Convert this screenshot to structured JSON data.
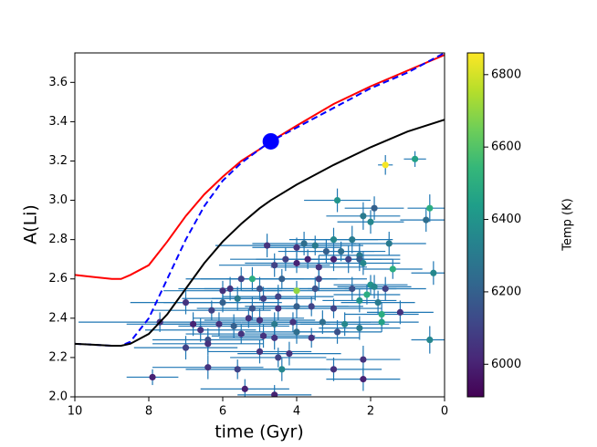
{
  "chart_data": {
    "type": "scatter",
    "xlabel": "time (Gyr)",
    "ylabel": "A(Li)",
    "xlim": [
      10,
      0
    ],
    "ylim": [
      2.0,
      3.75
    ],
    "xticks": [
      10,
      8,
      6,
      4,
      2,
      0
    ],
    "yticks": [
      {
        "value": 2.0,
        "label": "2.0"
      },
      2.2,
      2.4,
      2.6,
      2.8,
      {
        "value": 3.0,
        "label": "3.0"
      },
      3.2,
      3.4,
      3.6
    ],
    "points": {
      "x": [
        1.6,
        0.8,
        2.9,
        2.2,
        1.9,
        0.4,
        0.5,
        2.0,
        4.8,
        4.0,
        3.0,
        2.5,
        3.8,
        3.5,
        1.5,
        3.2,
        2.8,
        2.3,
        4.3,
        3.7,
        3.0,
        2.6,
        2.3,
        4.6,
        4.0,
        3.4,
        2.2,
        1.4,
        0.3,
        5.5,
        5.2,
        4.4,
        3.4,
        4.0,
        5.0,
        5.8,
        6.0,
        3.5,
        2.5,
        2.0,
        1.9,
        1.6,
        2.1,
        2.3,
        5.6,
        6.0,
        4.9,
        4.5,
        3.6,
        1.8,
        7.0,
        6.3,
        5.2,
        4.5,
        4.0,
        3.0,
        1.7,
        1.2,
        7.7,
        6.8,
        6.1,
        5.7,
        5.3,
        5.0,
        4.6,
        4.1,
        3.3,
        2.7,
        2.3,
        1.7,
        6.6,
        6.4,
        5.5,
        4.9,
        4.6,
        4.0,
        3.6,
        2.9,
        0.4,
        7.0,
        6.4,
        5.0,
        4.5,
        4.2,
        4.4,
        6.4,
        5.6,
        3.0,
        2.2,
        2.2,
        7.9,
        5.4,
        4.6
      ],
      "y": [
        3.18,
        3.21,
        3.0,
        2.92,
        2.96,
        2.96,
        2.9,
        2.89,
        2.77,
        2.76,
        2.8,
        2.8,
        2.78,
        2.77,
        2.78,
        2.74,
        2.74,
        2.72,
        2.7,
        2.7,
        2.7,
        2.7,
        2.7,
        2.67,
        2.68,
        2.66,
        2.68,
        2.65,
        2.63,
        2.6,
        2.6,
        2.6,
        2.6,
        2.54,
        2.55,
        2.55,
        2.54,
        2.55,
        2.55,
        2.57,
        2.56,
        2.55,
        2.52,
        2.49,
        2.5,
        2.48,
        2.5,
        2.51,
        2.46,
        2.48,
        2.48,
        2.44,
        2.45,
        2.45,
        2.46,
        2.45,
        2.42,
        2.43,
        2.38,
        2.37,
        2.37,
        2.36,
        2.4,
        2.39,
        2.37,
        2.38,
        2.38,
        2.37,
        2.35,
        2.38,
        2.34,
        2.29,
        2.32,
        2.31,
        2.3,
        2.33,
        2.3,
        2.33,
        2.29,
        2.25,
        2.27,
        2.23,
        2.2,
        2.22,
        2.14,
        2.15,
        2.14,
        2.14,
        2.19,
        2.09,
        2.1,
        2.04,
        2.01
      ],
      "x_err": [
        0.2,
        0.3,
        0.9,
        1.0,
        0.8,
        0.6,
        0.7,
        0.9,
        1.4,
        1.2,
        1.2,
        1.1,
        1.4,
        1.3,
        1.0,
        1.3,
        1.2,
        1.1,
        1.5,
        1.4,
        1.3,
        1.2,
        1.1,
        1.5,
        1.4,
        1.3,
        1.0,
        0.8,
        0.6,
        1.5,
        1.4,
        1.5,
        1.3,
        1.5,
        1.5,
        1.4,
        1.6,
        1.3,
        1.2,
        1.0,
        1.0,
        1.1,
        0.9,
        1.0,
        1.5,
        1.6,
        1.4,
        1.5,
        1.4,
        1.0,
        1.5,
        1.6,
        1.5,
        1.5,
        1.4,
        1.3,
        1.0,
        0.9,
        2.2,
        1.8,
        1.6,
        1.5,
        1.5,
        1.5,
        1.5,
        1.4,
        1.3,
        1.2,
        1.1,
        1.0,
        1.5,
        1.5,
        1.5,
        1.4,
        1.5,
        1.4,
        1.3,
        1.2,
        0.5,
        1.4,
        1.5,
        1.4,
        1.3,
        1.4,
        1.2,
        1.5,
        1.4,
        1.3,
        1.0,
        1.0,
        0.7,
        1.2,
        1.0
      ],
      "y_err": [
        0.05,
        0.04,
        0.06,
        0.07,
        0.06,
        0.07,
        0.06,
        0.06,
        0.06,
        0.05,
        0.06,
        0.07,
        0.06,
        0.05,
        0.06,
        0.06,
        0.05,
        0.06,
        0.06,
        0.05,
        0.06,
        0.07,
        0.06,
        0.06,
        0.05,
        0.06,
        0.06,
        0.05,
        0.06,
        0.06,
        0.06,
        0.05,
        0.06,
        0.05,
        0.06,
        0.06,
        0.05,
        0.06,
        0.06,
        0.05,
        0.06,
        0.06,
        0.05,
        0.06,
        0.06,
        0.05,
        0.06,
        0.06,
        0.05,
        0.06,
        0.06,
        0.05,
        0.06,
        0.06,
        0.06,
        0.05,
        0.06,
        0.06,
        0.05,
        0.06,
        0.06,
        0.06,
        0.05,
        0.06,
        0.06,
        0.05,
        0.06,
        0.06,
        0.06,
        0.05,
        0.06,
        0.06,
        0.05,
        0.06,
        0.06,
        0.06,
        0.05,
        0.06,
        0.07,
        0.06,
        0.06,
        0.06,
        0.05,
        0.06,
        0.06,
        0.06,
        0.05,
        0.06,
        0.07,
        0.06,
        0.04,
        0.05,
        0.05
      ],
      "temp": [
        6850,
        6450,
        6400,
        6300,
        6200,
        6500,
        6250,
        6350,
        6050,
        6050,
        6350,
        6300,
        6250,
        6300,
        6300,
        6200,
        6250,
        6300,
        6100,
        6000,
        6000,
        6100,
        6200,
        6100,
        6000,
        6050,
        6350,
        6500,
        6350,
        6100,
        6500,
        6200,
        6100,
        6700,
        6150,
        6050,
        6050,
        6150,
        6150,
        6400,
        6350,
        6100,
        6500,
        6400,
        6300,
        6200,
        6100,
        6100,
        6100,
        6300,
        6050,
        6100,
        6150,
        6050,
        6200,
        6100,
        6500,
        6050,
        6050,
        6000,
        6050,
        6200,
        6050,
        6050,
        6300,
        6050,
        6250,
        6350,
        6300,
        6450,
        6050,
        6150,
        6050,
        6050,
        6050,
        6250,
        6050,
        6150,
        6350,
        6100,
        6050,
        6050,
        6100,
        6050,
        6350,
        6050,
        6100,
        6050,
        6050,
        6000,
        6000,
        6000,
        6000
      ],
      "errorbar_color": "#1f77b4"
    },
    "lines": [
      {
        "color": "#ff0000",
        "style": "solid",
        "x": [
          10,
          9.5,
          9,
          8.75,
          8.5,
          8,
          7.5,
          7,
          6.5,
          6,
          5.5,
          5,
          4.7,
          4,
          3,
          2,
          1,
          0
        ],
        "y": [
          2.62,
          2.61,
          2.6,
          2.6,
          2.62,
          2.67,
          2.79,
          2.92,
          3.03,
          3.12,
          3.2,
          3.26,
          3.3,
          3.38,
          3.49,
          3.58,
          3.66,
          3.74
        ]
      },
      {
        "color": "#0000ff",
        "style": "dashed",
        "x": [
          10,
          9.5,
          9,
          8.75,
          8.5,
          8,
          7.5,
          7,
          6.5,
          6,
          5.5,
          5,
          4.7,
          4,
          3,
          2,
          1,
          0
        ],
        "y": [
          2.27,
          2.265,
          2.26,
          2.26,
          2.28,
          2.4,
          2.6,
          2.8,
          2.97,
          3.1,
          3.19,
          3.26,
          3.3,
          3.37,
          3.47,
          3.57,
          3.65,
          3.75
        ]
      },
      {
        "color": "#000000",
        "style": "solid",
        "x": [
          10,
          9.5,
          9,
          8.75,
          8.5,
          8,
          7.5,
          7,
          6.5,
          6,
          5.5,
          5,
          4.7,
          4,
          3,
          2,
          1,
          0
        ],
        "y": [
          2.27,
          2.265,
          2.26,
          2.26,
          2.27,
          2.32,
          2.42,
          2.55,
          2.68,
          2.79,
          2.88,
          2.96,
          3.0,
          3.08,
          3.18,
          3.27,
          3.35,
          3.41
        ]
      }
    ],
    "marker": {
      "x": 4.7,
      "y": 3.3,
      "color": "#0000ff"
    },
    "colorbar": {
      "label": "Temp (K)",
      "colormap": "viridis",
      "lim": [
        5910,
        6860
      ],
      "ticks": [
        6000,
        6200,
        6400,
        6600,
        6800
      ]
    }
  }
}
